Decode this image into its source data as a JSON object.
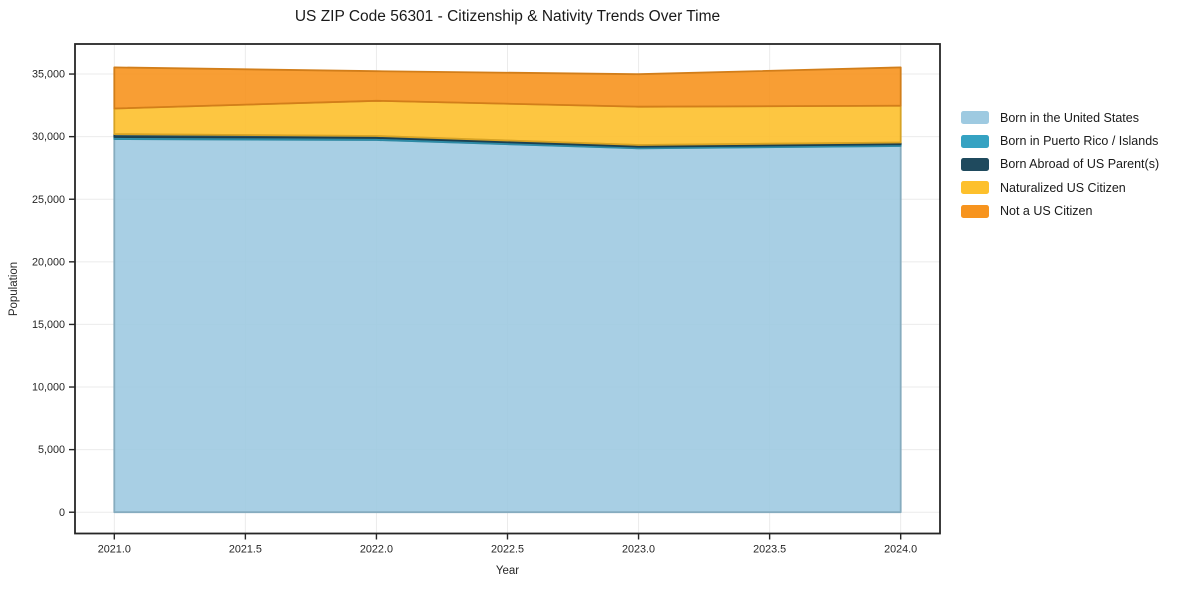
{
  "title": "US ZIP Code 56301 - Citizenship & Nativity Trends Over Time",
  "chart_data": {
    "type": "area",
    "stacked": true,
    "x": [
      2021,
      2022,
      2023,
      2024
    ],
    "series": [
      {
        "name": "Born in the United States",
        "color": "#9ecae1",
        "values": [
          29800,
          29730,
          29070,
          29250
        ]
      },
      {
        "name": "Born in Puerto Rico / Islands",
        "color": "#35a2c2",
        "values": [
          170,
          160,
          130,
          140
        ]
      },
      {
        "name": "Born Abroad of US Parent(s)",
        "color": "#1f4a5e",
        "values": [
          230,
          160,
          130,
          140
        ]
      },
      {
        "name": "Naturalized US Citizen",
        "color": "#fdc02c",
        "values": [
          2050,
          2810,
          3060,
          2940
        ]
      },
      {
        "name": "Not a US Citizen",
        "color": "#f7941e",
        "values": [
          3280,
          2370,
          2600,
          3060
        ]
      }
    ],
    "totals": [
      35530,
      35230,
      34990,
      35530
    ],
    "title": "US ZIP Code 56301 - Citizenship & Nativity Trends Over Time",
    "xlabel": "Year",
    "ylabel": "Population",
    "x_ticks": [
      2021.0,
      2021.5,
      2022.0,
      2022.5,
      2023.0,
      2023.5,
      2024.0
    ],
    "y_ticks": [
      0,
      5000,
      10000,
      15000,
      20000,
      25000,
      30000,
      35000
    ],
    "xlim": [
      2020.85,
      2024.15
    ],
    "ylim": [
      -1700,
      37400
    ],
    "grid": true,
    "legend_position": "right"
  },
  "style": {
    "spine_color": "#262626",
    "grid_color": "#ebebeb",
    "tick_color": "#262626",
    "text_color": "#262626",
    "fill_opacity": 0.9
  }
}
